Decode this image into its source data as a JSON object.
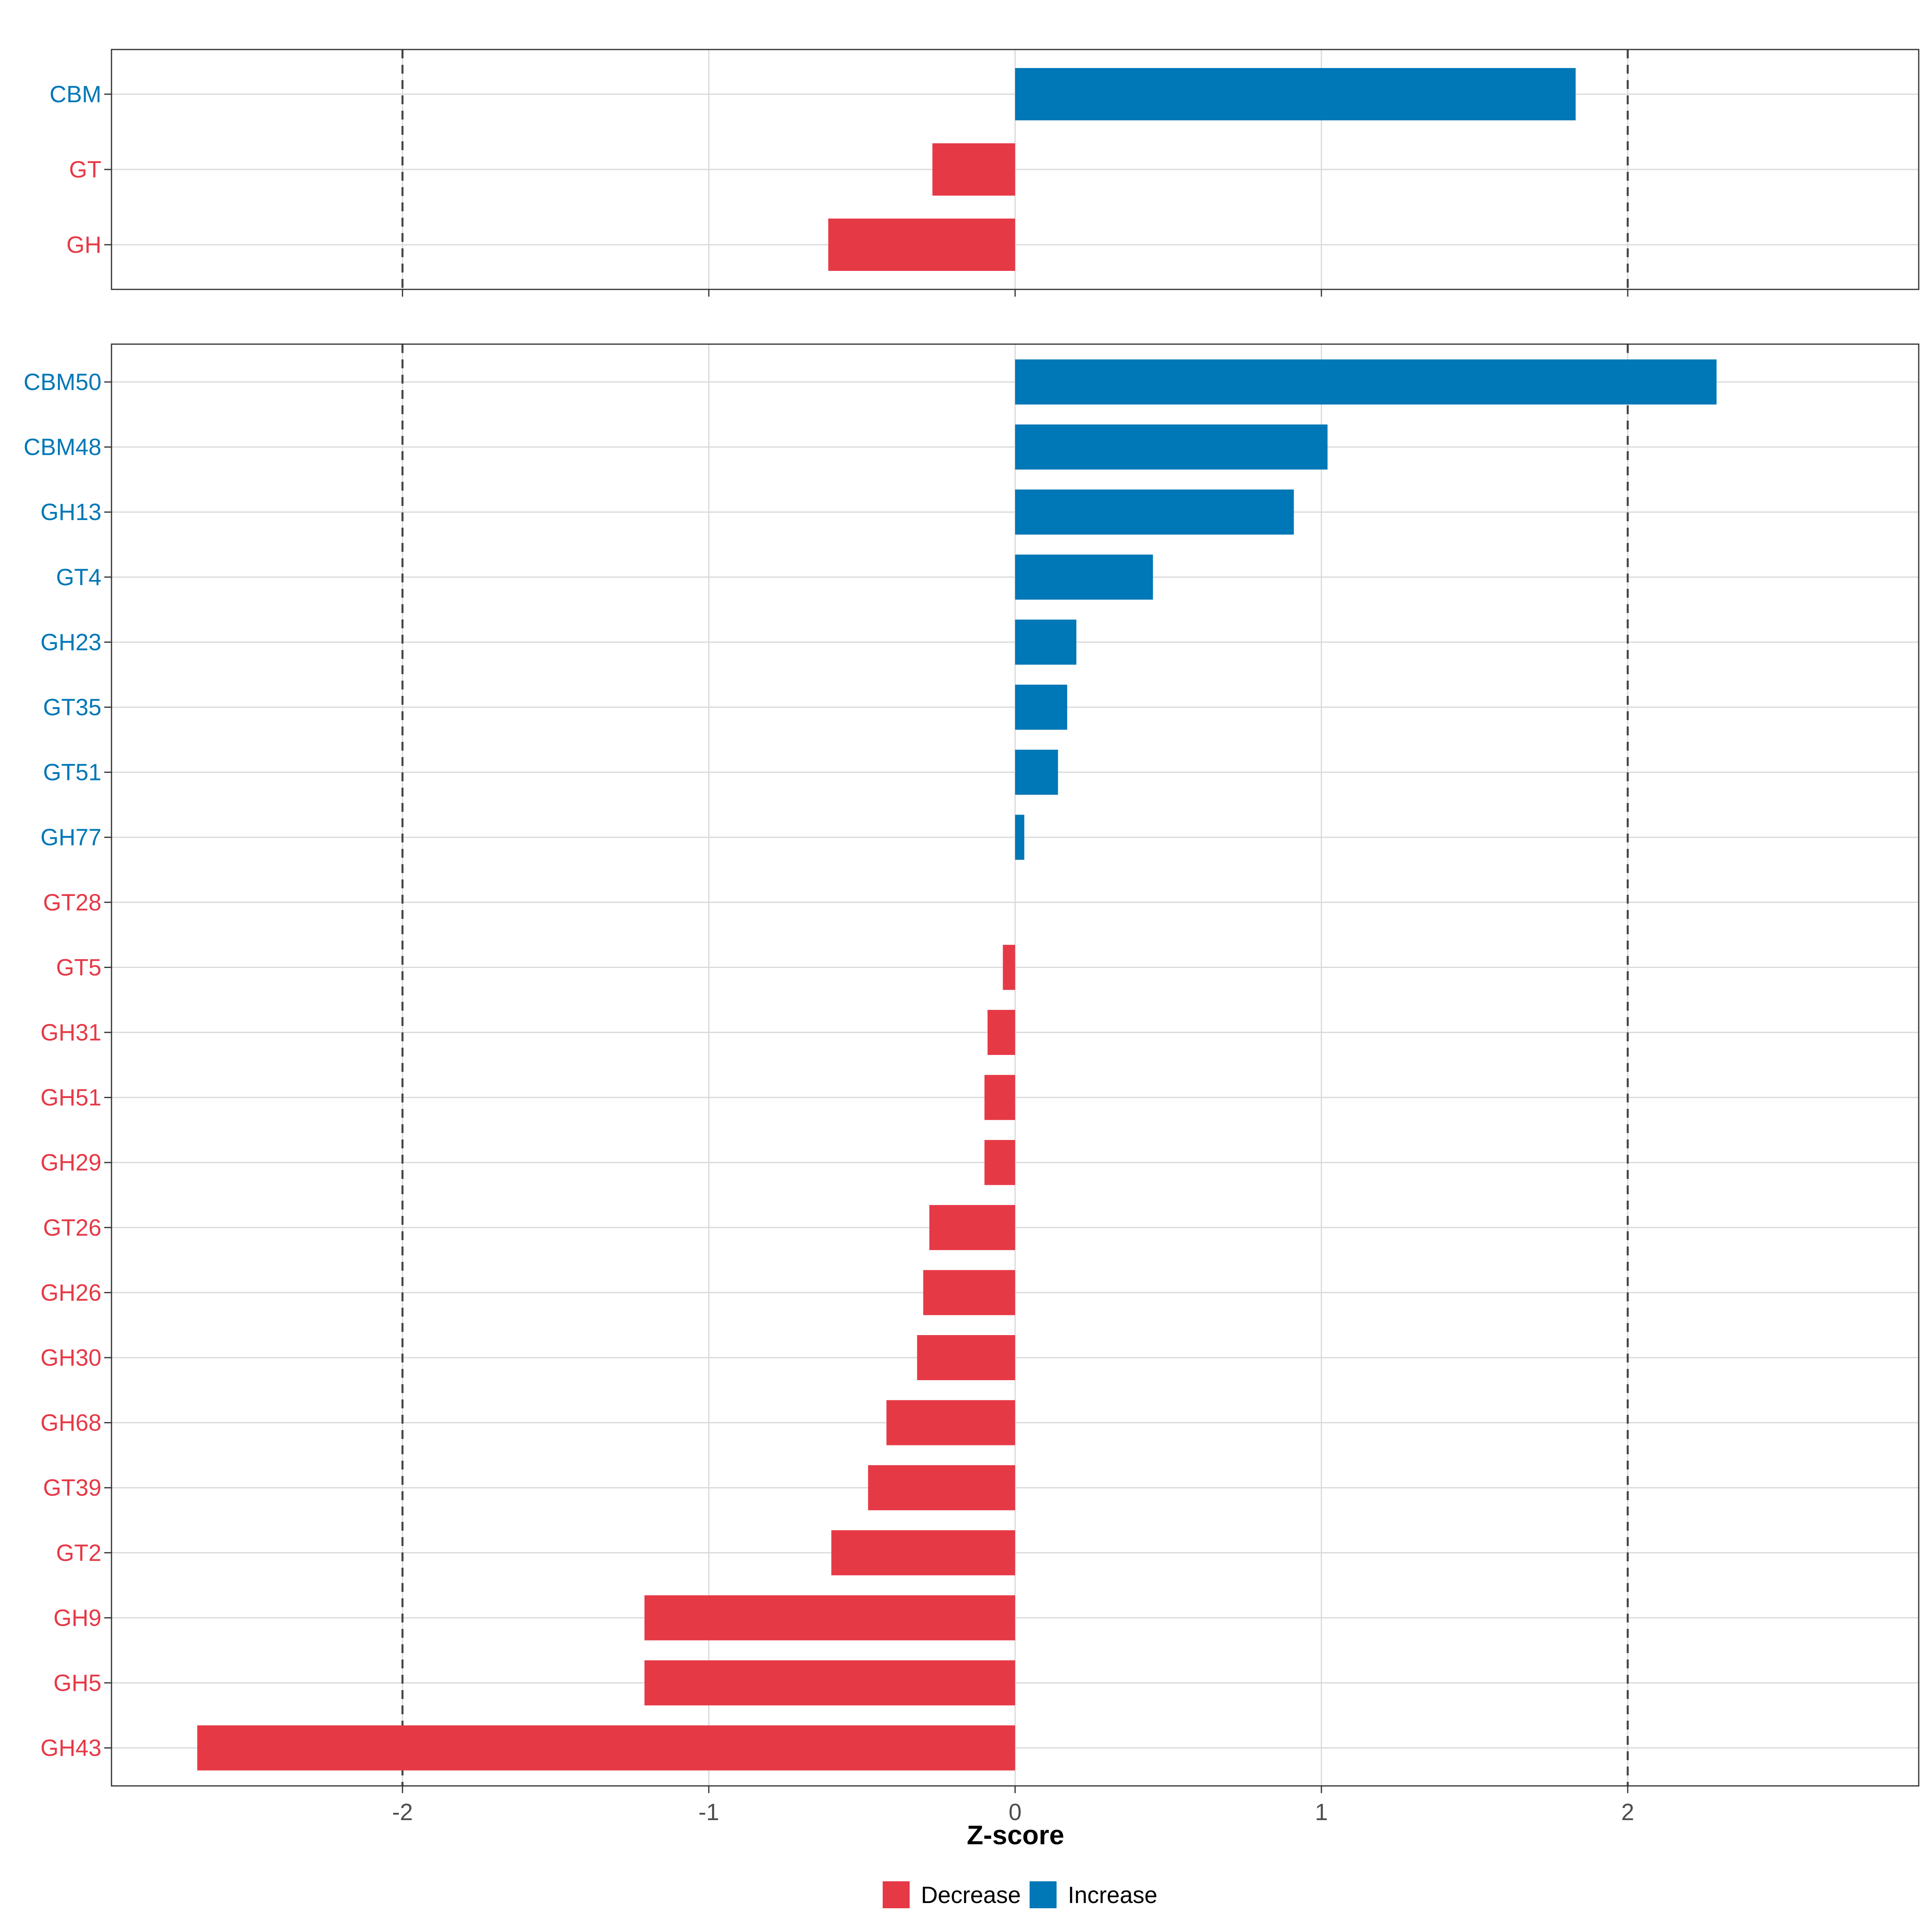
{
  "chart_data": [
    {
      "type": "bar",
      "orientation": "horizontal",
      "panel": "top",
      "categories": [
        "CBM",
        "GT",
        "GH"
      ],
      "values": [
        1.83,
        -0.27,
        -0.61
      ],
      "xlim": [
        -2.95,
        2.95
      ],
      "x_ticks": [
        -2,
        -1,
        0,
        1,
        2
      ],
      "reference_lines": [
        -2,
        2
      ],
      "grid": true
    },
    {
      "type": "bar",
      "orientation": "horizontal",
      "panel": "bottom",
      "categories": [
        "CBM50",
        "CBM48",
        "GH13",
        "GT4",
        "GH23",
        "GT35",
        "GT51",
        "GH77",
        "GT28",
        "GT5",
        "GH31",
        "GH51",
        "GH29",
        "GT26",
        "GH26",
        "GH30",
        "GH68",
        "GT39",
        "GT2",
        "GH9",
        "GH5",
        "GH43"
      ],
      "values": [
        2.29,
        1.02,
        0.91,
        0.45,
        0.2,
        0.17,
        0.14,
        0.03,
        0.0,
        -0.04,
        -0.09,
        -0.1,
        -0.1,
        -0.28,
        -0.3,
        -0.32,
        -0.42,
        -0.48,
        -0.6,
        -1.21,
        -1.21,
        -2.67
      ],
      "xlim": [
        -2.95,
        2.95
      ],
      "x_ticks": [
        -2,
        -1,
        0,
        1,
        2
      ],
      "x_tick_labels": [
        "-2",
        "-1",
        "0",
        "1",
        "2"
      ],
      "xlabel": "Z-score",
      "reference_lines": [
        -2,
        2
      ],
      "grid": true
    }
  ],
  "legend": {
    "position": "bottom",
    "items": [
      {
        "label": "Decrease",
        "color": "#E63946"
      },
      {
        "label": "Increase",
        "color": "#0077B6"
      }
    ]
  },
  "colors": {
    "decrease": "#E63946",
    "increase": "#0077B6",
    "grid": "#D9D9D9",
    "border": "#333333",
    "reference_line": "#444444"
  }
}
